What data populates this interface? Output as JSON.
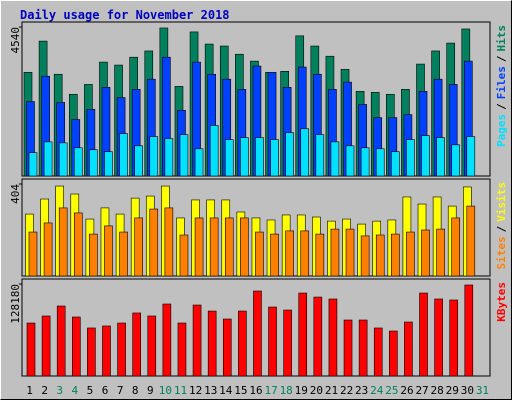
{
  "chart_data": {
    "type": "bar",
    "title": "Daily usage for November 2018",
    "categories": [
      "1",
      "2",
      "3",
      "4",
      "5",
      "6",
      "7",
      "8",
      "9",
      "10",
      "11",
      "12",
      "13",
      "14",
      "15",
      "16",
      "17",
      "18",
      "19",
      "20",
      "21",
      "22",
      "23",
      "24",
      "25",
      "26",
      "27",
      "28",
      "29",
      "30",
      "31"
    ],
    "category_colors": [
      "#000000",
      "#000000",
      "#00805c",
      "#00805c",
      "#000000",
      "#000000",
      "#000000",
      "#000000",
      "#000000",
      "#00805c",
      "#00805c",
      "#000000",
      "#000000",
      "#000000",
      "#000000",
      "#000000",
      "#00805c",
      "#00805c",
      "#000000",
      "#000000",
      "#000000",
      "#000000",
      "#000000",
      "#00805c",
      "#00805c",
      "#000000",
      "#000000",
      "#000000",
      "#000000",
      "#000000",
      "#00805c"
    ],
    "separator": "/",
    "panels": [
      {
        "ylim": [
          0,
          4540
        ],
        "yticks": [
          4540
        ],
        "series": [
          {
            "name": "Hits",
            "color": "#00805c",
            "values": [
              3160,
              4110,
              3100,
              2490,
              2790,
              3470,
              3380,
              3620,
              3810,
              4510,
              2730,
              4390,
              4020,
              3960,
              3710,
              3500,
              3160,
              3190,
              4270,
              3960,
              3650,
              3250,
              2580,
              2550,
              2490,
              2640,
              3410,
              3810,
              4050,
              4480,
              null
            ]
          },
          {
            "name": "Files",
            "color": "#0040ff",
            "values": [
              2270,
              3040,
              2240,
              1720,
              2030,
              2700,
              2390,
              2640,
              2950,
              3620,
              2000,
              3470,
              3100,
              2950,
              2640,
              3350,
              3160,
              2700,
              3320,
              3100,
              2640,
              2860,
              2180,
              1780,
              1780,
              1870,
              2580,
              2950,
              2790,
              3500,
              null
            ]
          },
          {
            "name": "Pages",
            "color": "#00e0ff",
            "values": [
              710,
              1040,
              1010,
              860,
              800,
              740,
              1290,
              920,
              1200,
              1140,
              1260,
              830,
              1540,
              1110,
              1170,
              1170,
              1110,
              1320,
              1440,
              1260,
              1040,
              920,
              860,
              830,
              740,
              1110,
              1230,
              1170,
              950,
              1200,
              null
            ]
          }
        ]
      },
      {
        "ylim": [
          0,
          404
        ],
        "yticks": [
          404
        ],
        "series": [
          {
            "name": "Visits",
            "color": "#ffff00",
            "values": [
              272,
              338,
              395,
              360,
              250,
              299,
              272,
              342,
              351,
              395,
              255,
              334,
              334,
              334,
              281,
              255,
              246,
              268,
              268,
              259,
              241,
              250,
              228,
              241,
              246,
              347,
              316,
              347,
              307,
              391,
              null
            ]
          },
          {
            "name": "Sites",
            "color": "#ff8000",
            "values": [
              193,
              233,
              299,
              277,
              184,
              220,
              193,
              255,
              294,
              299,
              180,
              255,
              255,
              255,
              255,
              193,
              184,
              198,
              198,
              184,
              206,
              206,
              176,
              180,
              184,
              193,
              202,
              206,
              255,
              307,
              null
            ]
          }
        ]
      },
      {
        "ylim": [
          0,
          128180
        ],
        "yticks": [
          128180
        ],
        "series": [
          {
            "name": "KBytes",
            "color": "#ff0000",
            "values": [
              73800,
              83600,
              97500,
              82200,
              66900,
              69700,
              73800,
              87800,
              83600,
              100300,
              73800,
              98900,
              90500,
              79400,
              90500,
              118400,
              96100,
              91900,
              115600,
              110000,
              107300,
              78000,
              78000,
              66900,
              62700,
              75200,
              115600,
              107300,
              105900,
              126800,
              null
            ]
          }
        ]
      }
    ]
  }
}
